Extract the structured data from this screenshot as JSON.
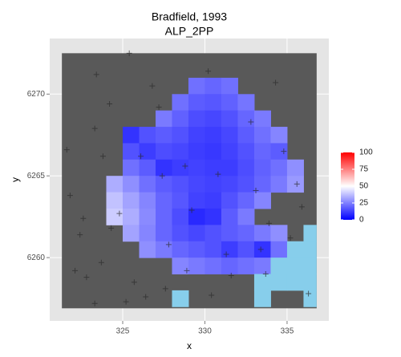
{
  "chart_data": {
    "type": "heatmap",
    "title": "Bradfield, 1993",
    "subtitle": "ALP_2PP",
    "x_label": "x",
    "y_label": "y",
    "xlim": [
      320.56,
      337.54
    ],
    "ylim": [
      6256.13,
      6273.4
    ],
    "xticks": [
      325,
      330,
      335
    ],
    "yticks": [
      6260,
      6265,
      6270
    ],
    "grid": true,
    "raster_extent": {
      "x": [
        321.3,
        336.8
      ],
      "y": [
        6256.9,
        6272.5
      ],
      "color": "#595959"
    },
    "grid_cells": {
      "x": [
        324.5,
        325.5,
        326.5,
        327.5,
        328.5,
        329.5,
        330.5,
        331.5,
        332.5,
        333.5,
        334.5,
        335.5
      ],
      "y": [
        6270.5,
        6269.5,
        6268.5,
        6267.5,
        6266.5,
        6265.5,
        6264.5,
        6263.5,
        6262.5,
        6261.5,
        6260.5,
        6259.5
      ],
      "values": [
        [
          null,
          null,
          null,
          null,
          null,
          22,
          20,
          22,
          null,
          null,
          null,
          null
        ],
        [
          null,
          null,
          null,
          null,
          22,
          18,
          17,
          19,
          23,
          null,
          null,
          null
        ],
        [
          null,
          null,
          null,
          24,
          19,
          15,
          14,
          16,
          20,
          24,
          null,
          null
        ],
        [
          null,
          10,
          16,
          18,
          16,
          13,
          12,
          14,
          18,
          22,
          26,
          null
        ],
        [
          null,
          16,
          12,
          15,
          14,
          12,
          11,
          13,
          16,
          20,
          18,
          null
        ],
        [
          null,
          22,
          18,
          10,
          12,
          13,
          12,
          12,
          15,
          19,
          22,
          28
        ],
        [
          34,
          28,
          22,
          18,
          16,
          14,
          13,
          14,
          16,
          20,
          24,
          30
        ],
        [
          38,
          32,
          26,
          20,
          17,
          13,
          12,
          16,
          20,
          26,
          null,
          null
        ],
        [
          40,
          34,
          27,
          20,
          15,
          8,
          10,
          18,
          24,
          null,
          null,
          null
        ],
        [
          null,
          32,
          26,
          20,
          16,
          14,
          16,
          18,
          20,
          24,
          28,
          null
        ],
        [
          null,
          null,
          28,
          24,
          20,
          18,
          16,
          12,
          16,
          10,
          22,
          null
        ],
        [
          null,
          null,
          null,
          null,
          26,
          24,
          22,
          20,
          22,
          24,
          null,
          null
        ]
      ]
    },
    "water": {
      "color": "#87ceeb",
      "x": [
        335.5,
        336.5,
        335.5,
        336.5,
        334.5,
        333.5,
        334.5,
        335.5,
        336.5,
        336.5,
        333.5,
        336.5,
        328.5
      ],
      "y": [
        6260.5,
        6260.5,
        6259.5,
        6259.5,
        6259.5,
        6258.5,
        6258.5,
        6258.5,
        6258.5,
        6257.5,
        6257.5,
        6261.5,
        6257.5
      ]
    },
    "points": {
      "color": "#2b2b2b",
      "x": [
        325.4,
        323.4,
        326.8,
        330.2,
        334.3,
        324.2,
        327.2,
        321.6,
        323.3,
        332.8,
        334.8,
        323.8,
        328.8,
        330.8,
        327.4,
        326.1,
        335.6,
        333.1,
        321.8,
        322.6,
        324.8,
        329.2,
        333.9,
        335.9,
        322.4,
        324.3,
        327.8,
        331.3,
        333.4,
        335.2,
        322.1,
        323.7,
        325.7,
        328.9,
        331.6,
        333.7,
        322.8,
        326.4,
        330.4,
        336.3,
        325.2,
        327.6,
        323.3
      ],
      "y": [
        6272.5,
        6271.2,
        6270.5,
        6271.4,
        6270.7,
        6269.4,
        6269.2,
        6266.6,
        6267.9,
        6268.3,
        6266.5,
        6266.2,
        6265.6,
        6265.1,
        6265.0,
        6266.2,
        6264.5,
        6264.1,
        6263.8,
        6262.4,
        6262.7,
        6262.9,
        6262.1,
        6263.1,
        6261.4,
        6261.8,
        6260.8,
        6260.2,
        6260.5,
        6261.2,
        6259.2,
        6259.7,
        6258.5,
        6259.2,
        6258.9,
        6259.0,
        6258.8,
        6257.6,
        6257.7,
        6257.8,
        6257.3,
        6258.1,
        6257.2
      ]
    },
    "legend": {
      "lim": [
        0,
        100
      ],
      "midpoint": 50,
      "ticks": [
        0,
        25,
        50,
        75,
        100
      ],
      "low": "#0000ff",
      "mid": "#ffffff",
      "high": "#ff0000"
    }
  }
}
